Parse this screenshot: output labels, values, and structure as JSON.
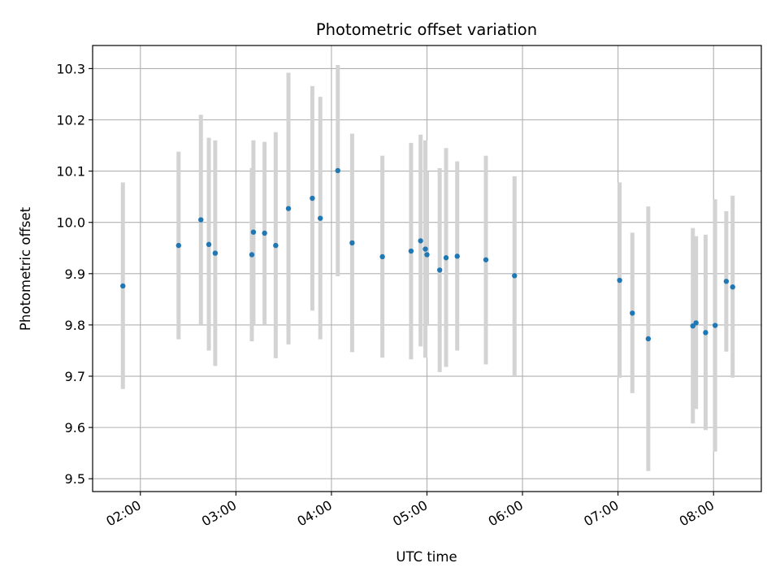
{
  "chart_data": {
    "type": "scatter",
    "title": "Photometric offset variation",
    "xlabel": "UTC time",
    "ylabel": "Photometric offset",
    "x_unit": "UTC HH:MM",
    "xlim": [
      "01:30",
      "08:30"
    ],
    "ylim": [
      9.475,
      10.345
    ],
    "x_ticks": [
      "02:00",
      "03:00",
      "04:00",
      "05:00",
      "06:00",
      "07:00",
      "08:00"
    ],
    "y_ticks": [
      "9.5",
      "9.6",
      "9.7",
      "9.8",
      "9.9",
      "10.0",
      "10.1",
      "10.2",
      "10.3"
    ],
    "grid": true,
    "colors": {
      "point": "#1f77b4",
      "errorbar": "#d3d3d3",
      "grid": "#b0b0b0"
    },
    "points": [
      {
        "t": "01:49",
        "y": 9.876,
        "lo": 9.675,
        "hi": 10.078
      },
      {
        "t": "02:24",
        "y": 9.955,
        "lo": 9.772,
        "hi": 10.138
      },
      {
        "t": "02:38",
        "y": 10.005,
        "lo": 9.8,
        "hi": 10.21
      },
      {
        "t": "02:43",
        "y": 9.957,
        "lo": 9.75,
        "hi": 10.165
      },
      {
        "t": "02:47",
        "y": 9.94,
        "lo": 9.72,
        "hi": 10.16
      },
      {
        "t": "03:10",
        "y": 9.937,
        "lo": 9.768,
        "hi": 10.106
      },
      {
        "t": "03:11",
        "y": 9.981,
        "lo": 9.8,
        "hi": 10.16
      },
      {
        "t": "03:18",
        "y": 9.979,
        "lo": 9.8,
        "hi": 10.157
      },
      {
        "t": "03:25",
        "y": 9.955,
        "lo": 9.735,
        "hi": 10.176
      },
      {
        "t": "03:33",
        "y": 10.027,
        "lo": 9.762,
        "hi": 10.292
      },
      {
        "t": "03:48",
        "y": 10.047,
        "lo": 9.828,
        "hi": 10.266
      },
      {
        "t": "03:53",
        "y": 10.008,
        "lo": 9.772,
        "hi": 10.245
      },
      {
        "t": "04:04",
        "y": 10.101,
        "lo": 9.895,
        "hi": 10.307
      },
      {
        "t": "04:13",
        "y": 9.96,
        "lo": 9.747,
        "hi": 10.173
      },
      {
        "t": "04:32",
        "y": 9.933,
        "lo": 9.736,
        "hi": 10.13
      },
      {
        "t": "04:50",
        "y": 9.944,
        "lo": 9.733,
        "hi": 10.155
      },
      {
        "t": "04:56",
        "y": 9.964,
        "lo": 9.758,
        "hi": 10.171
      },
      {
        "t": "04:59",
        "y": 9.948,
        "lo": 9.736,
        "hi": 10.16
      },
      {
        "t": "05:00",
        "y": 9.937,
        "lo": 9.8,
        "hi": 10.1
      },
      {
        "t": "05:08",
        "y": 9.907,
        "lo": 9.708,
        "hi": 10.106
      },
      {
        "t": "05:12",
        "y": 9.931,
        "lo": 9.718,
        "hi": 10.145
      },
      {
        "t": "05:19",
        "y": 9.934,
        "lo": 9.75,
        "hi": 10.119
      },
      {
        "t": "05:37",
        "y": 9.927,
        "lo": 9.723,
        "hi": 10.13
      },
      {
        "t": "05:55",
        "y": 9.896,
        "lo": 9.7,
        "hi": 10.09
      },
      {
        "t": "07:01",
        "y": 9.887,
        "lo": 9.697,
        "hi": 10.078
      },
      {
        "t": "07:09",
        "y": 9.823,
        "lo": 9.667,
        "hi": 9.98
      },
      {
        "t": "07:19",
        "y": 9.773,
        "lo": 9.515,
        "hi": 10.031
      },
      {
        "t": "07:47",
        "y": 9.798,
        "lo": 9.608,
        "hi": 9.989
      },
      {
        "t": "07:49",
        "y": 9.804,
        "lo": 9.636,
        "hi": 9.973
      },
      {
        "t": "07:55",
        "y": 9.785,
        "lo": 9.595,
        "hi": 9.976
      },
      {
        "t": "08:01",
        "y": 9.799,
        "lo": 9.553,
        "hi": 10.045
      },
      {
        "t": "08:08",
        "y": 9.885,
        "lo": 9.748,
        "hi": 10.022
      },
      {
        "t": "08:12",
        "y": 9.874,
        "lo": 9.697,
        "hi": 10.052
      }
    ]
  }
}
